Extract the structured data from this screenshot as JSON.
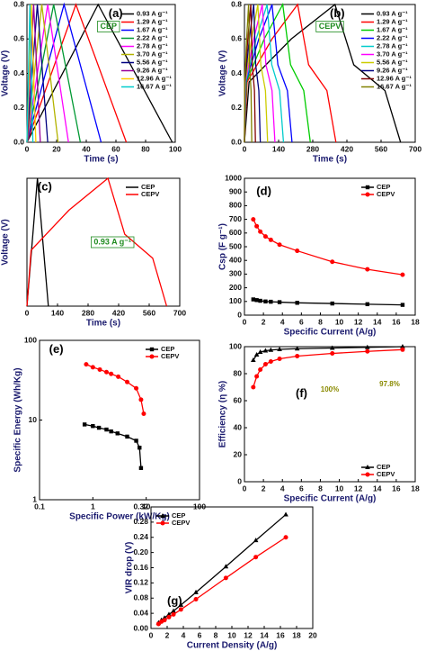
{
  "chart_data": [
    {
      "type": "line",
      "label": "(a)",
      "annotations": [
        "CEP"
      ],
      "x_label": "Time (s)",
      "y_label": "Voltage (V)",
      "legend": "upper right",
      "xlim": [
        0,
        100
      ],
      "xticks": [
        0,
        20,
        40,
        60,
        80,
        100
      ],
      "ylim": [
        0,
        0.8
      ],
      "yticks": [
        {
          "value": 0,
          "label": "0.0"
        },
        {
          "value": 0.2,
          "label": "0.2"
        },
        {
          "value": 0.4,
          "label": "0.4"
        },
        {
          "value": 0.6,
          "label": "0.6"
        },
        {
          "value": 0.8,
          "label": "0.8"
        }
      ],
      "series": [
        {
          "name": "0.93 A g⁻¹",
          "color": "#000000",
          "x": [
            0,
            48,
            98
          ],
          "values": [
            0,
            0.8,
            0
          ]
        },
        {
          "name": "1.29 A g⁻¹",
          "color": "#ff0000",
          "x": [
            0,
            33,
            67
          ],
          "values": [
            0,
            0.8,
            0
          ]
        },
        {
          "name": "1.67 A g⁻¹",
          "color": "#0000ff",
          "x": [
            0,
            25,
            50
          ],
          "values": [
            0,
            0.8,
            0
          ]
        },
        {
          "name": "2.22 A g⁻¹",
          "color": "#009933",
          "x": [
            0,
            18,
            36
          ],
          "values": [
            0,
            0.8,
            0
          ]
        },
        {
          "name": "2.78 A g⁻¹",
          "color": "#ff00ff",
          "x": [
            0,
            14,
            28
          ],
          "values": [
            0,
            0.8,
            0
          ]
        },
        {
          "name": "3.70 A g⁻¹",
          "color": "#b3b300",
          "x": [
            0,
            10,
            21
          ],
          "values": [
            0,
            0.8,
            0
          ]
        },
        {
          "name": "5.56 A g⁻¹",
          "color": "#000080",
          "x": [
            0,
            7,
            14
          ],
          "values": [
            0,
            0.8,
            0
          ]
        },
        {
          "name": "9.26 A g⁻¹",
          "color": "#990099",
          "x": [
            0,
            4.5,
            9
          ],
          "values": [
            0,
            0.8,
            0
          ]
        },
        {
          "name": "12.96 A g⁻¹",
          "color": "#ffcc00",
          "x": [
            0,
            3,
            6
          ],
          "values": [
            0,
            0.8,
            0
          ]
        },
        {
          "name": "16.67 A g⁻¹",
          "color": "#00cccc",
          "x": [
            0,
            2,
            4
          ],
          "values": [
            0,
            0.8,
            0
          ]
        }
      ]
    },
    {
      "type": "line",
      "label": "(b)",
      "annotations": [
        "CEPV"
      ],
      "x_label": "Time (s)",
      "y_label": "Voltage (V)",
      "legend": "upper right",
      "xlim": [
        0,
        700
      ],
      "xticks": [
        0,
        140,
        280,
        420,
        560,
        700
      ],
      "ylim": [
        0,
        0.8
      ],
      "yticks": [
        {
          "value": 0,
          "label": "0.0"
        },
        {
          "value": 0.2,
          "label": "0.2"
        },
        {
          "value": 0.4,
          "label": "0.4"
        },
        {
          "value": 0.6,
          "label": "0.6"
        },
        {
          "value": 0.8,
          "label": "0.8"
        }
      ],
      "series": [
        {
          "name": "0.93 A g⁻¹",
          "color": "#000000",
          "x": [
            0,
            19,
            192,
            371,
            448,
            576,
            640
          ],
          "values": [
            0,
            0.35,
            0.6,
            0.8,
            0.45,
            0.3,
            0
          ]
        },
        {
          "name": "1.29 A g⁻¹",
          "color": "#ff0000",
          "x": [
            0,
            11,
            113,
            218,
            263,
            338,
            375
          ],
          "values": [
            0,
            0.35,
            0.6,
            0.8,
            0.45,
            0.3,
            0
          ]
        },
        {
          "name": "1.67 A g⁻¹",
          "color": "#00cc00",
          "x": [
            0,
            8,
            81,
            157,
            189,
            243,
            270
          ],
          "values": [
            0,
            0.35,
            0.6,
            0.8,
            0.45,
            0.3,
            0
          ]
        },
        {
          "name": "2.22 A g⁻¹",
          "color": "#0000ff",
          "x": [
            0,
            6,
            59,
            113,
            137,
            176,
            195
          ],
          "values": [
            0,
            0.35,
            0.6,
            0.8,
            0.45,
            0.3,
            0
          ]
        },
        {
          "name": "2.78 A g⁻¹",
          "color": "#00cccc",
          "x": [
            0,
            5,
            48,
            93,
            112,
            144,
            160
          ],
          "values": [
            0,
            0.35,
            0.6,
            0.8,
            0.45,
            0.3,
            0
          ]
        },
        {
          "name": "3.70 A g⁻¹",
          "color": "#ff00ff",
          "x": [
            0,
            4,
            38,
            73,
            88,
            113,
            125
          ],
          "values": [
            0,
            0.35,
            0.6,
            0.8,
            0.45,
            0.3,
            0
          ]
        },
        {
          "name": "5.56 A g⁻¹",
          "color": "#cccc00",
          "x": [
            0,
            3,
            29,
            55,
            67,
            86,
            95
          ],
          "values": [
            0,
            0.35,
            0.6,
            0.8,
            0.45,
            0.3,
            0
          ]
        },
        {
          "name": "9.26 A g⁻¹",
          "color": "#000080",
          "x": [
            0,
            2,
            20,
            38,
            46,
            59,
            65
          ],
          "values": [
            0,
            0.35,
            0.6,
            0.8,
            0.45,
            0.3,
            0
          ]
        },
        {
          "name": "12.96 A g⁻¹",
          "color": "#800000",
          "x": [
            0,
            1,
            14,
            26,
            32,
            41,
            45
          ],
          "values": [
            0,
            0.35,
            0.6,
            0.8,
            0.45,
            0.3,
            0
          ]
        },
        {
          "name": "16.67 A g⁻¹",
          "color": "#808000",
          "x": [
            0,
            1,
            9,
            17,
            21,
            27,
            30
          ],
          "values": [
            0,
            0.35,
            0.6,
            0.8,
            0.45,
            0.3,
            0
          ]
        }
      ]
    },
    {
      "type": "line",
      "label": "(c)",
      "annotations": [
        "0.93 A g⁻¹"
      ],
      "x_label": "Time (s)",
      "y_label": "Voltage (V)",
      "legend": "upper right",
      "xlim": [
        0,
        700
      ],
      "xticks": [
        0,
        140,
        280,
        420,
        560,
        700
      ],
      "ylim": [
        0,
        0.8
      ],
      "yticks": [],
      "series": [
        {
          "name": "CEP",
          "color": "#000000",
          "x": [
            0,
            48,
            98
          ],
          "values": [
            0,
            0.8,
            0
          ]
        },
        {
          "name": "CEPV",
          "color": "#ff0000",
          "x": [
            0,
            19,
            192,
            371,
            448,
            576,
            640
          ],
          "values": [
            0,
            0.35,
            0.6,
            0.8,
            0.45,
            0.3,
            0
          ]
        }
      ]
    },
    {
      "type": "line",
      "label": "(d)",
      "annotations": [],
      "x_label": "Specific Current (A/g)",
      "y_label": "Csp (F g⁻¹)",
      "legend": "upper right",
      "xlim": [
        0,
        18
      ],
      "xticks": [
        0,
        2,
        4,
        6,
        8,
        10,
        12,
        14,
        16,
        18
      ],
      "ylim": [
        0,
        1000
      ],
      "yticks": [
        0,
        100,
        200,
        300,
        400,
        500,
        600,
        700,
        800,
        900,
        1000
      ],
      "x": [
        0.93,
        1.29,
        1.67,
        2.22,
        2.78,
        3.7,
        5.56,
        9.26,
        12.96,
        16.67
      ],
      "series": [
        {
          "name": "CEP",
          "color": "#000000",
          "marker": "square",
          "values": [
            115,
            110,
            105,
            100,
            98,
            95,
            90,
            85,
            80,
            75
          ]
        },
        {
          "name": "CEPV",
          "color": "#ff0000",
          "marker": "circle",
          "values": [
            700,
            650,
            610,
            575,
            550,
            515,
            470,
            390,
            335,
            295
          ]
        }
      ]
    },
    {
      "type": "line",
      "label": "(e)",
      "annotations": [],
      "x_label": "Specific Power (kW/Kg)",
      "y_label": "Specific Energy (Wh/Kg)",
      "legend": "upper right",
      "xscale": "log",
      "yscale": "log",
      "xlim": [
        0.1,
        100
      ],
      "xticks": [
        0.1,
        1,
        10,
        100
      ],
      "ylim": [
        1,
        100
      ],
      "yticks": [
        1,
        10,
        100
      ],
      "series": [
        {
          "name": "CEP",
          "color": "#000000",
          "marker": "square",
          "x": [
            0.7,
            1.0,
            1.3,
            1.8,
            2.2,
            2.9,
            4.4,
            6.5,
            7.5,
            8.0
          ],
          "values": [
            8.8,
            8.4,
            8.0,
            7.6,
            7.2,
            6.8,
            6.2,
            5.5,
            4.5,
            2.5
          ]
        },
        {
          "name": "CEPV",
          "color": "#ff0000",
          "marker": "circle",
          "x": [
            0.75,
            1.0,
            1.35,
            1.8,
            2.2,
            3.0,
            4.4,
            6.5,
            8.0,
            9.0
          ],
          "values": [
            50,
            46,
            43,
            40,
            38,
            35,
            30,
            25,
            18,
            12
          ]
        }
      ]
    },
    {
      "type": "line",
      "label": "(f)",
      "annotations": [
        "100%",
        "97.8%"
      ],
      "x_label": "Specific Current (A/g)",
      "y_label": "Efficiency (η %)",
      "legend": "lower right",
      "xlim": [
        0,
        18
      ],
      "xticks": [
        0,
        2,
        4,
        6,
        8,
        10,
        12,
        14,
        16,
        18
      ],
      "ylim": [
        0,
        100
      ],
      "yticks": [
        0,
        20,
        40,
        60,
        80,
        100
      ],
      "x": [
        0.93,
        1.29,
        1.67,
        2.22,
        2.78,
        3.7,
        5.56,
        9.26,
        12.96,
        16.67
      ],
      "series": [
        {
          "name": "CEP",
          "color": "#000000",
          "marker": "triangle",
          "values": [
            90,
            94,
            96,
            97,
            97.5,
            98,
            98.5,
            99,
            99.5,
            100
          ]
        },
        {
          "name": "CEPV",
          "color": "#ff0000",
          "marker": "circle",
          "values": [
            70,
            78,
            83,
            87,
            89,
            91,
            93,
            95,
            96.5,
            97.8
          ]
        }
      ]
    },
    {
      "type": "line",
      "label": "(g)",
      "annotations": [],
      "x_label": "Current Density (A/g)",
      "y_label": "VIR drop (V)",
      "legend": "upper left",
      "xlim": [
        0,
        20
      ],
      "xticks": [
        0,
        2,
        4,
        6,
        8,
        10,
        12,
        14,
        16,
        18,
        20
      ],
      "ylim": [
        0,
        0.32
      ],
      "yticks": [
        {
          "value": 0,
          "label": "0.00"
        },
        {
          "value": 0.04,
          "label": "0.04"
        },
        {
          "value": 0.08,
          "label": "0.08"
        },
        {
          "value": 0.12,
          "label": "0.12"
        },
        {
          "value": 0.16,
          "label": "0.16"
        },
        {
          "value": 0.2,
          "label": "0.20"
        },
        {
          "value": 0.24,
          "label": "0.24"
        },
        {
          "value": 0.28,
          "label": "0.28"
        },
        {
          "value": 0.32,
          "label": "0.32"
        }
      ],
      "x": [
        0.93,
        1.29,
        1.67,
        2.22,
        2.78,
        3.7,
        5.56,
        9.26,
        12.96,
        16.67
      ],
      "series": [
        {
          "name": "CEP",
          "color": "#000000",
          "marker": "triangle",
          "values": [
            0.015,
            0.022,
            0.028,
            0.037,
            0.046,
            0.062,
            0.095,
            0.163,
            0.232,
            0.3
          ]
        },
        {
          "name": "CEPV",
          "color": "#ff0000",
          "marker": "circle",
          "values": [
            0.012,
            0.018,
            0.022,
            0.03,
            0.037,
            0.05,
            0.077,
            0.133,
            0.188,
            0.24
          ]
        }
      ]
    }
  ]
}
